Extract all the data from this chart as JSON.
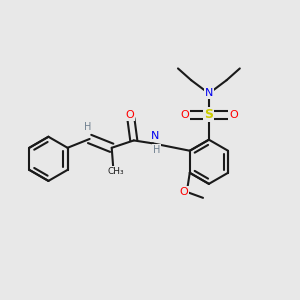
{
  "background_color": "#e8e8e8",
  "bond_color": "#1a1a1a",
  "atom_colors": {
    "O": "#ff0000",
    "N": "#0000ee",
    "S": "#cccc00",
    "H": "#708090",
    "C": "#1a1a1a"
  },
  "figsize": [
    3.0,
    3.0
  ],
  "dpi": 100
}
